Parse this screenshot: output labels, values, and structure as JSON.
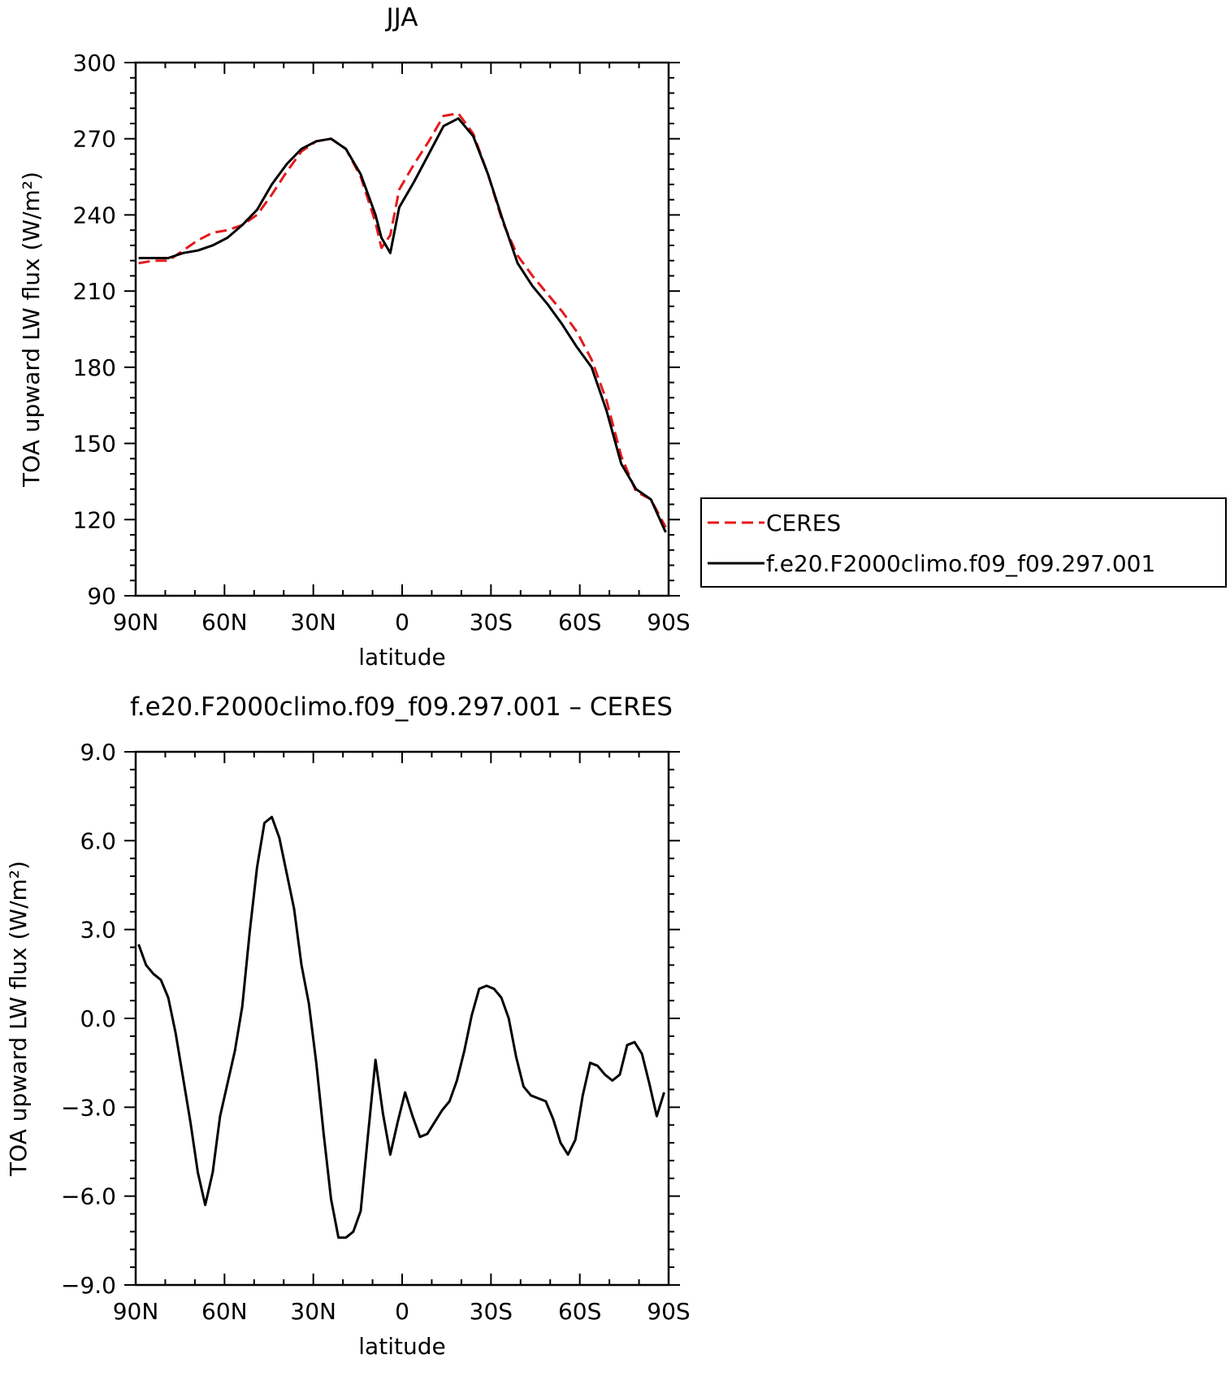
{
  "chart_data": [
    {
      "type": "line",
      "title": "JJA",
      "xlabel": "latitude",
      "ylabel": "TOA upward LW flux (W/m²)",
      "xlim": [
        90,
        -90
      ],
      "ylim": [
        90,
        300
      ],
      "x_ticks": [
        90,
        60,
        30,
        0,
        -30,
        -60,
        -90
      ],
      "x_tick_labels": [
        "90N",
        "60N",
        "30N",
        "0",
        "30S",
        "60S",
        "90S"
      ],
      "y_ticks": [
        90,
        120,
        150,
        180,
        210,
        240,
        270,
        300
      ],
      "y_tick_labels": [
        "90",
        "120",
        "150",
        "180",
        "210",
        "240",
        "270",
        "300"
      ],
      "grid": false,
      "legend": "right",
      "series": [
        {
          "name": "CERES",
          "color": "#e41a1c",
          "dash": "dashed",
          "x": [
            89,
            84,
            79,
            74,
            69,
            64,
            59,
            54,
            49,
            44,
            39,
            34,
            29,
            24,
            19,
            14,
            9,
            7,
            4,
            1,
            -4,
            -9,
            -14,
            -19,
            -24,
            -29,
            -34,
            -39,
            -44,
            -49,
            -54,
            -59,
            -64,
            -69,
            -74,
            -79,
            -84,
            -89
          ],
          "y": [
            221,
            222,
            222,
            226,
            230,
            233,
            234,
            236,
            240,
            248,
            257,
            265,
            269,
            270,
            266,
            255,
            237,
            227,
            232,
            250,
            260,
            269,
            279,
            280,
            272,
            256,
            237,
            224,
            216,
            209,
            202,
            194,
            183,
            167,
            145,
            131,
            128,
            117
          ]
        },
        {
          "name": "f.e20.F2000climo.f09_f09.297.001",
          "color": "#000000",
          "dash": "solid",
          "x": [
            89,
            84,
            79,
            74,
            69,
            64,
            59,
            54,
            49,
            44,
            39,
            34,
            29,
            24,
            19,
            14,
            9,
            7,
            4,
            1,
            -4,
            -9,
            -14,
            -19,
            -24,
            -29,
            -34,
            -39,
            -44,
            -49,
            -54,
            -59,
            -64,
            -69,
            -74,
            -79,
            -84,
            -89
          ],
          "y": [
            223,
            223,
            223,
            225,
            226,
            228,
            231,
            236,
            242,
            252,
            260,
            266,
            269,
            270,
            266,
            256,
            240,
            231,
            225,
            243,
            253,
            264,
            275,
            278,
            271,
            256,
            238,
            221,
            212,
            205,
            197,
            188,
            180,
            163,
            142,
            132,
            128,
            115
          ]
        }
      ]
    },
    {
      "type": "line",
      "title": "f.e20.F2000climo.f09_f09.297.001 – CERES",
      "xlabel": "latitude",
      "ylabel": "TOA upward LW flux (W/m²)",
      "xlim": [
        90,
        -90
      ],
      "ylim": [
        -9,
        9
      ],
      "x_ticks": [
        90,
        60,
        30,
        0,
        -30,
        -60,
        -90
      ],
      "x_tick_labels": [
        "90N",
        "60N",
        "30N",
        "0",
        "30S",
        "60S",
        "90S"
      ],
      "y_ticks": [
        -9,
        -6,
        -3,
        0,
        3,
        6,
        9
      ],
      "y_tick_labels": [
        "−9.0",
        "−6.0",
        "−3.0",
        "0.0",
        "3.0",
        "6.0",
        "9.0"
      ],
      "grid": false,
      "series": [
        {
          "color": "#000000",
          "dash": "solid",
          "x": [
            89,
            86.5,
            84,
            81.5,
            79,
            76.5,
            74,
            71.5,
            69,
            66.5,
            64,
            61.5,
            59,
            56.5,
            54,
            51.5,
            49,
            46.5,
            44,
            41.5,
            39,
            36.5,
            34,
            31.5,
            29,
            26.5,
            24,
            21.5,
            19,
            16.5,
            14,
            11.5,
            9,
            6.5,
            4,
            1.5,
            -1,
            -3.5,
            -6,
            -8.5,
            -11,
            -13.5,
            -16,
            -18.5,
            -21,
            -23.5,
            -26,
            -28.5,
            -31,
            -33.5,
            -36,
            -38.5,
            -41,
            -43.5,
            -46,
            -48.5,
            -51,
            -53.5,
            -56,
            -58.5,
            -61,
            -63.5,
            -66,
            -68.5,
            -71,
            -73.5,
            -76,
            -78.5,
            -81,
            -83.5,
            -86,
            -88.5
          ],
          "y": [
            2.5,
            1.8,
            1.5,
            1.3,
            0.7,
            -0.5,
            -2.0,
            -3.5,
            -5.2,
            -6.3,
            -5.2,
            -3.3,
            -2.2,
            -1.1,
            0.4,
            2.9,
            5.1,
            6.6,
            6.8,
            6.1,
            4.9,
            3.7,
            1.8,
            0.5,
            -1.5,
            -3.9,
            -6.1,
            -7.4,
            -7.4,
            -7.2,
            -6.5,
            -3.9,
            -1.4,
            -3.2,
            -4.6,
            -3.5,
            -2.5,
            -3.3,
            -4.0,
            -3.9,
            -3.5,
            -3.1,
            -2.8,
            -2.1,
            -1.1,
            0.1,
            1.0,
            1.1,
            1.0,
            0.7,
            0.0,
            -1.3,
            -2.3,
            -2.6,
            -2.7,
            -2.8,
            -3.4,
            -4.2,
            -4.6,
            -4.1,
            -2.6,
            -1.5,
            -1.6,
            -1.9,
            -2.1,
            -1.9,
            -0.9,
            -0.8,
            -1.2,
            -2.2,
            -3.3,
            -2.5
          ]
        }
      ]
    }
  ]
}
